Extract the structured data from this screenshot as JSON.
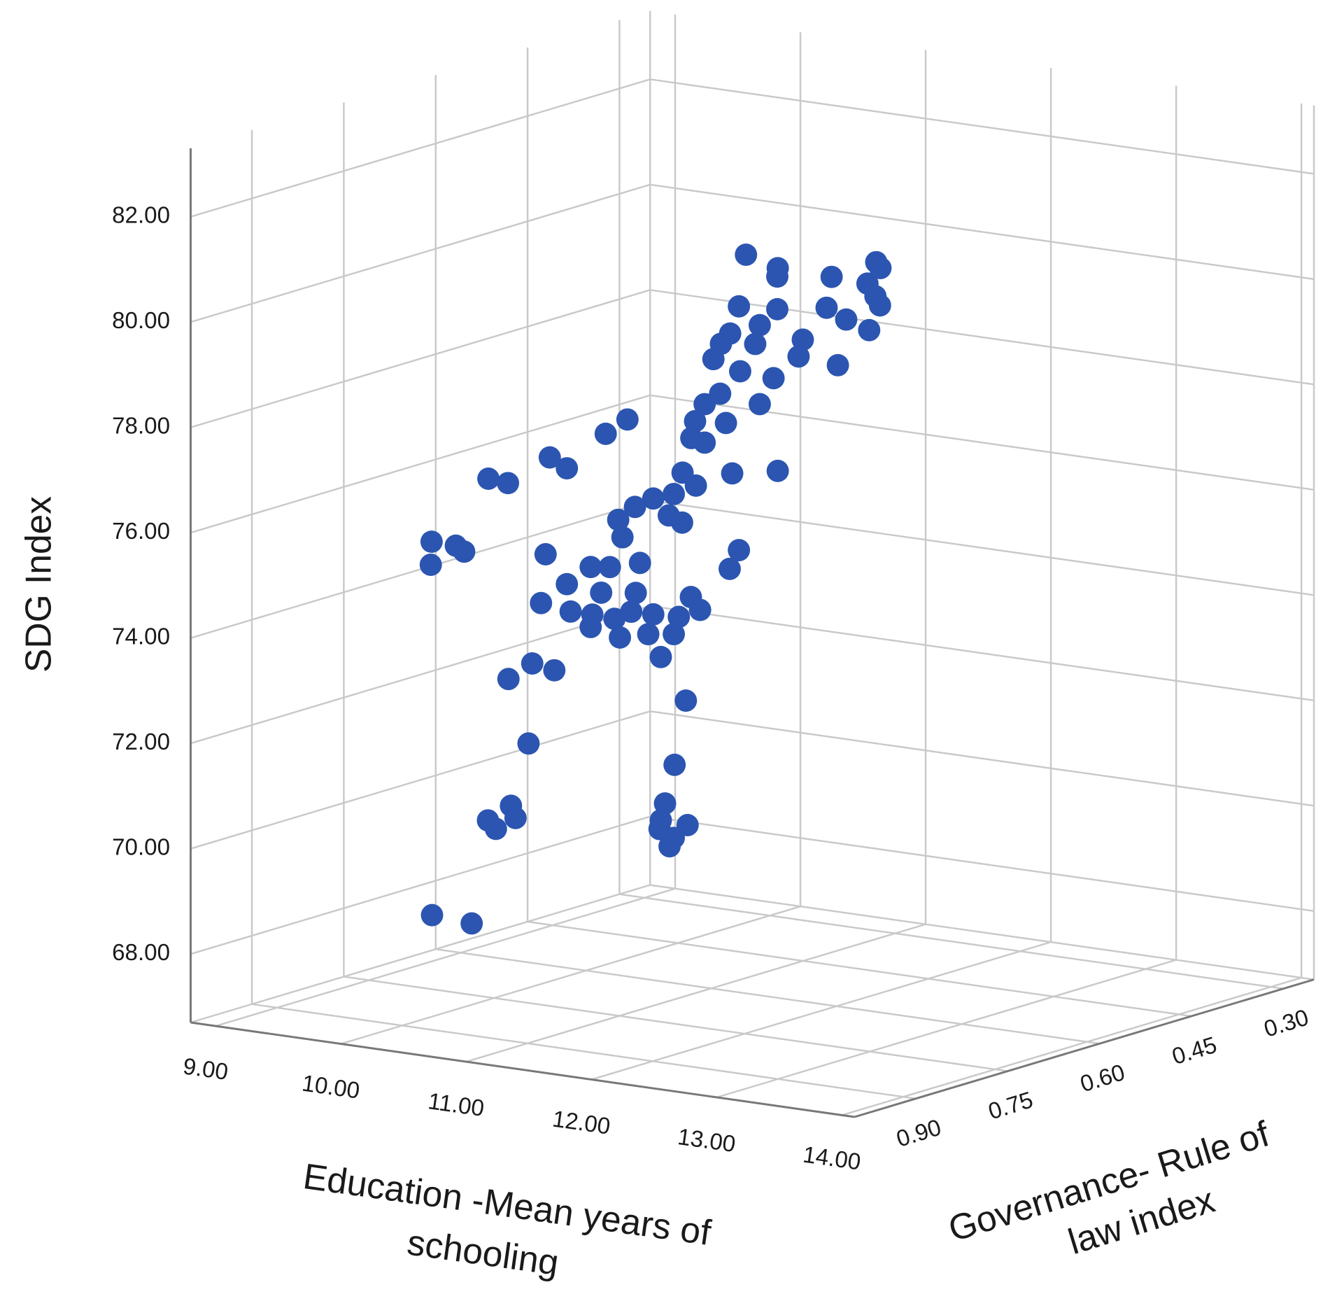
{
  "chart_data": {
    "type": "scatter3d",
    "y_label": "SDG Index",
    "x_label": [
      "Education -Mean years of",
      "schooling"
    ],
    "z_label": [
      "Governance- Rule of",
      "law index"
    ],
    "xlim": [
      8.8,
      14.1
    ],
    "ylim": [
      66.7,
      83.3
    ],
    "zlim": [
      0.25,
      1.0
    ],
    "xticks": [
      {
        "value": 9,
        "label": "9.00"
      },
      {
        "value": 10,
        "label": "10.00"
      },
      {
        "value": 11,
        "label": "11.00"
      },
      {
        "value": 12,
        "label": "12.00"
      },
      {
        "value": 13,
        "label": "13.00"
      },
      {
        "value": 14,
        "label": "14.00"
      }
    ],
    "yticks": [
      {
        "value": 68,
        "label": "68.00"
      },
      {
        "value": 70,
        "label": "70.00"
      },
      {
        "value": 72,
        "label": "72.00"
      },
      {
        "value": 74,
        "label": "74.00"
      },
      {
        "value": 76,
        "label": "76.00"
      },
      {
        "value": 78,
        "label": "78.00"
      },
      {
        "value": 80,
        "label": "80.00"
      },
      {
        "value": 82,
        "label": "82.00"
      }
    ],
    "zticks": [
      {
        "value": 0.3,
        "label": "0.30"
      },
      {
        "value": 0.45,
        "label": "0.45"
      },
      {
        "value": 0.6,
        "label": "0.60"
      },
      {
        "value": 0.75,
        "label": "0.75"
      },
      {
        "value": 0.9,
        "label": "0.90"
      }
    ],
    "grid": true,
    "series": [
      {
        "color": "#2b55b0",
        "x": [
          12.5,
          12.02,
          12.75,
          12.45,
          13.54,
          12.84,
          13.47,
          12.8,
          13.57,
          11.71,
          12.75,
          12.41,
          13.3,
          12.75,
          12.61,
          11.64,
          12.3,
          12.22,
          12.92,
          11.84,
          12.24,
          11.72,
          12.72,
          12.5,
          12.61,
          11.56,
          12.17,
          11.36,
          12.34,
          11.33,
          12.17,
          10.82,
          11.38,
          10.2,
          11.07,
          9.71,
          10.6,
          12.02,
          12.39,
          11.26,
          12.1,
          11.19,
          11.76,
          10.88,
          11.48,
          11.15,
          11.99,
          10.78,
          9.99,
          9.45,
          10.25,
          9.25,
          10.9,
          11.71,
          12.37,
          10.92,
          11.26,
          10.68,
          11.07,
          10.61,
          11.62,
          10.13,
          12.06,
          11.4,
          11.1,
          10.54,
          11.45,
          10.85,
          11.76,
          11.23,
          11.26,
          10.76,
          11.72,
          11.19,
          11.82,
          10.06,
          10.97,
          9.87,
          12.02,
          10.03,
          11.93,
          11.12,
          10.44,
          9.89,
          10.66,
          9.77,
          11.82,
          11.3,
          11.81,
          11.19,
          11.89,
          9.26,
          10.31
        ],
        "y": [
          82.01,
          81.07,
          81.68,
          81.05,
          82.22,
          81.35,
          81.79,
          80.8,
          81.41,
          80.24,
          81.06,
          80.45,
          81.05,
          80.14,
          80.71,
          79.7,
          80.25,
          79.78,
          80.22,
          79.57,
          79.94,
          79.01,
          79.74,
          79.39,
          79.21,
          78.53,
          79.06,
          77.94,
          78.76,
          77.61,
          78.33,
          77.79,
          78.23,
          76.86,
          77.47,
          76.29,
          77.03,
          77.22,
          77.82,
          76.93,
          77.49,
          76.5,
          77.13,
          76.15,
          76.63,
          76.08,
          76.75,
          75.54,
          75.71,
          74.93,
          75.61,
          74.5,
          75.78,
          75.61,
          76.0,
          75.1,
          75.66,
          74.94,
          75.27,
          74.43,
          75.29,
          74.07,
          75.36,
          74.37,
          74.76,
          73.99,
          74.74,
          74.15,
          74.93,
          74.18,
          74.52,
          73.63,
          74.54,
          73.84,
          74.14,
          72.9,
          73.6,
          72.54,
          73.38,
          71.37,
          72.13,
          70.6,
          70.57,
          70.14,
          70.69,
          69.66,
          71.04,
          70.25,
          70.87,
          69.97,
          70.57,
          67.85,
          68.57
        ],
        "z": [
          0.85,
          0.7,
          0.85,
          0.7,
          0.85,
          0.7,
          0.85,
          0.7,
          0.85,
          0.7,
          0.85,
          0.7,
          0.85,
          0.7,
          0.85,
          0.7,
          0.85,
          0.7,
          0.85,
          0.7,
          0.85,
          0.7,
          0.85,
          0.7,
          0.85,
          0.7,
          0.85,
          0.7,
          0.85,
          0.7,
          0.85,
          0.7,
          0.85,
          0.7,
          0.85,
          0.7,
          0.85,
          0.7,
          0.85,
          0.7,
          0.85,
          0.7,
          0.85,
          0.7,
          0.85,
          0.7,
          0.85,
          0.7,
          0.85,
          0.7,
          0.85,
          0.7,
          0.85,
          0.7,
          0.85,
          0.7,
          0.85,
          0.7,
          0.85,
          0.7,
          0.85,
          0.7,
          0.85,
          0.7,
          0.85,
          0.7,
          0.85,
          0.7,
          0.85,
          0.7,
          0.85,
          0.7,
          0.85,
          0.7,
          0.85,
          0.7,
          0.85,
          0.7,
          0.85,
          0.7,
          0.85,
          0.7,
          0.85,
          0.7,
          0.85,
          0.7,
          0.85,
          0.7,
          0.85,
          0.7,
          0.85,
          0.7,
          0.85
        ]
      }
    ]
  }
}
